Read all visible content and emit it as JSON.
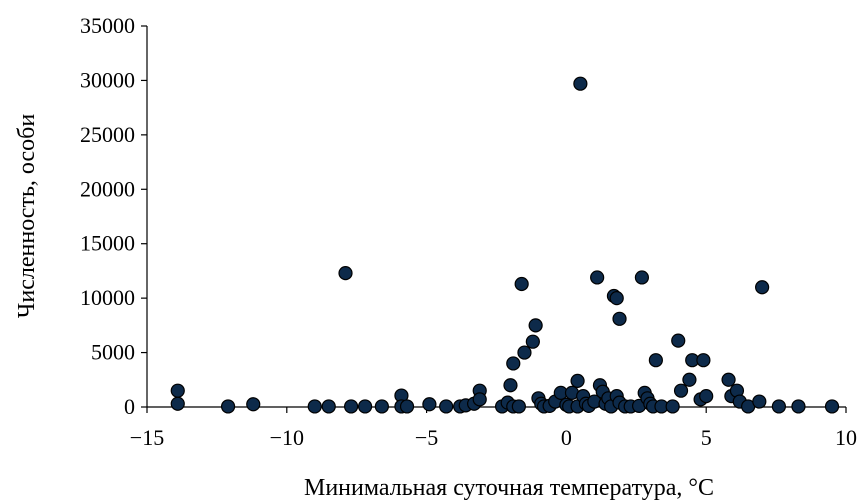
{
  "chart_data": {
    "type": "scatter",
    "xlabel": "Минимальная суточная температура, °С",
    "ylabel": "Численность, особи",
    "xlim": [
      -15,
      10
    ],
    "ylim": [
      0,
      35000
    ],
    "x_ticks": [
      -15,
      -10,
      -5,
      0,
      5,
      10
    ],
    "y_ticks": [
      0,
      5000,
      10000,
      15000,
      20000,
      25000,
      30000,
      35000
    ],
    "x_tick_labels": [
      "−15",
      "−10",
      "−5",
      "0",
      "5",
      "10"
    ],
    "y_tick_labels": [
      "0",
      "5000",
      "10000",
      "15000",
      "20000",
      "25000",
      "30000",
      "35000"
    ],
    "grid": false,
    "marker_color": "#0d2a4a",
    "points": [
      {
        "x": -13.9,
        "y": 1500
      },
      {
        "x": -13.9,
        "y": 300
      },
      {
        "x": -12.1,
        "y": 50
      },
      {
        "x": -11.2,
        "y": 250
      },
      {
        "x": -9.0,
        "y": 50
      },
      {
        "x": -8.5,
        "y": 50
      },
      {
        "x": -7.9,
        "y": 12300
      },
      {
        "x": -7.7,
        "y": 50
      },
      {
        "x": -7.2,
        "y": 50
      },
      {
        "x": -6.6,
        "y": 50
      },
      {
        "x": -5.9,
        "y": 1050
      },
      {
        "x": -5.9,
        "y": 50
      },
      {
        "x": -5.7,
        "y": 50
      },
      {
        "x": -4.9,
        "y": 250
      },
      {
        "x": -4.3,
        "y": 50
      },
      {
        "x": -3.8,
        "y": 50
      },
      {
        "x": -3.6,
        "y": 150
      },
      {
        "x": -3.3,
        "y": 300
      },
      {
        "x": -3.1,
        "y": 1500
      },
      {
        "x": -3.1,
        "y": 700
      },
      {
        "x": -2.3,
        "y": 50
      },
      {
        "x": -2.1,
        "y": 400
      },
      {
        "x": -2.0,
        "y": 2000
      },
      {
        "x": -1.9,
        "y": 4000
      },
      {
        "x": -1.9,
        "y": 50
      },
      {
        "x": -1.7,
        "y": 50
      },
      {
        "x": -1.6,
        "y": 11300
      },
      {
        "x": -1.5,
        "y": 5000
      },
      {
        "x": -1.2,
        "y": 6000
      },
      {
        "x": -1.1,
        "y": 7500
      },
      {
        "x": -1.0,
        "y": 800
      },
      {
        "x": -0.9,
        "y": 300
      },
      {
        "x": -0.8,
        "y": 50
      },
      {
        "x": -0.6,
        "y": 100
      },
      {
        "x": -0.4,
        "y": 500
      },
      {
        "x": -0.2,
        "y": 1300
      },
      {
        "x": 0.0,
        "y": 200
      },
      {
        "x": 0.1,
        "y": 50
      },
      {
        "x": 0.2,
        "y": 1300
      },
      {
        "x": 0.4,
        "y": 2400
      },
      {
        "x": 0.4,
        "y": 50
      },
      {
        "x": 0.5,
        "y": 29700
      },
      {
        "x": 0.6,
        "y": 1000
      },
      {
        "x": 0.7,
        "y": 300
      },
      {
        "x": 0.8,
        "y": 100
      },
      {
        "x": 1.0,
        "y": 500
      },
      {
        "x": 1.1,
        "y": 11900
      },
      {
        "x": 1.2,
        "y": 2000
      },
      {
        "x": 1.3,
        "y": 1400
      },
      {
        "x": 1.4,
        "y": 300
      },
      {
        "x": 1.5,
        "y": 800
      },
      {
        "x": 1.6,
        "y": 50
      },
      {
        "x": 1.7,
        "y": 10200
      },
      {
        "x": 1.8,
        "y": 10000
      },
      {
        "x": 1.8,
        "y": 1000
      },
      {
        "x": 1.9,
        "y": 8100
      },
      {
        "x": 1.9,
        "y": 400
      },
      {
        "x": 2.1,
        "y": 50
      },
      {
        "x": 2.3,
        "y": 50
      },
      {
        "x": 2.6,
        "y": 100
      },
      {
        "x": 2.7,
        "y": 11900
      },
      {
        "x": 2.8,
        "y": 1300
      },
      {
        "x": 2.9,
        "y": 800
      },
      {
        "x": 3.0,
        "y": 300
      },
      {
        "x": 3.1,
        "y": 50
      },
      {
        "x": 3.2,
        "y": 4300
      },
      {
        "x": 3.4,
        "y": 50
      },
      {
        "x": 3.8,
        "y": 50
      },
      {
        "x": 4.0,
        "y": 6100
      },
      {
        "x": 4.1,
        "y": 1500
      },
      {
        "x": 4.4,
        "y": 2500
      },
      {
        "x": 4.5,
        "y": 4300
      },
      {
        "x": 4.8,
        "y": 700
      },
      {
        "x": 4.9,
        "y": 4300
      },
      {
        "x": 5.0,
        "y": 1000
      },
      {
        "x": 5.8,
        "y": 2500
      },
      {
        "x": 5.9,
        "y": 1000
      },
      {
        "x": 6.1,
        "y": 1500
      },
      {
        "x": 6.2,
        "y": 500
      },
      {
        "x": 6.5,
        "y": 50
      },
      {
        "x": 6.9,
        "y": 500
      },
      {
        "x": 7.0,
        "y": 11000
      },
      {
        "x": 7.6,
        "y": 50
      },
      {
        "x": 8.3,
        "y": 50
      },
      {
        "x": 9.5,
        "y": 50
      }
    ]
  }
}
